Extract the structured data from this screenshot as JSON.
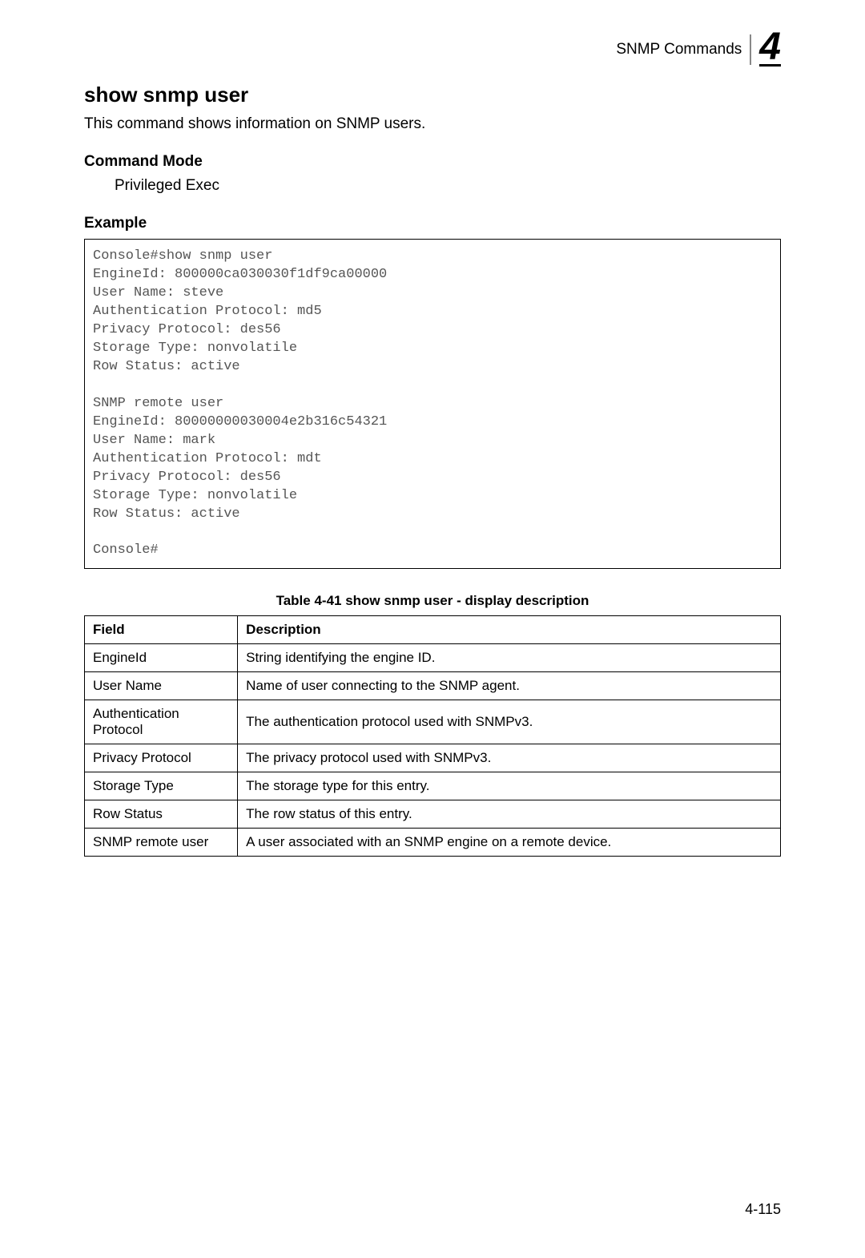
{
  "header": {
    "title": "SNMP Commands",
    "chapter": "4"
  },
  "command": {
    "title": "show snmp user",
    "description": "This command shows information on SNMP users."
  },
  "commandMode": {
    "label": "Command Mode",
    "value": "Privileged Exec"
  },
  "example": {
    "label": "Example",
    "code": "Console#show snmp user\nEngineId: 800000ca030030f1df9ca00000\nUser Name: steve\nAuthentication Protocol: md5\nPrivacy Protocol: des56\nStorage Type: nonvolatile\nRow Status: active\n\nSNMP remote user\nEngineId: 80000000030004e2b316c54321\nUser Name: mark\nAuthentication Protocol: mdt\nPrivacy Protocol: des56\nStorage Type: nonvolatile\nRow Status: active\n\nConsole#"
  },
  "table": {
    "caption": "Table 4-41  show snmp user - display description",
    "headers": {
      "field": "Field",
      "description": "Description"
    },
    "rows": [
      {
        "field": "EngineId",
        "description": "String identifying the engine ID."
      },
      {
        "field": "User Name",
        "description": "Name of user connecting to the SNMP agent."
      },
      {
        "field": "Authentication Protocol",
        "description": "The authentication protocol used with SNMPv3."
      },
      {
        "field": "Privacy Protocol",
        "description": "The privacy protocol used with SNMPv3."
      },
      {
        "field": "Storage Type",
        "description": "The storage type for this entry."
      },
      {
        "field": "Row Status",
        "description": "The row status of this entry."
      },
      {
        "field": "SNMP remote user",
        "description": "A user associated with an SNMP engine on a remote device."
      }
    ]
  },
  "pageNumber": "4-115"
}
